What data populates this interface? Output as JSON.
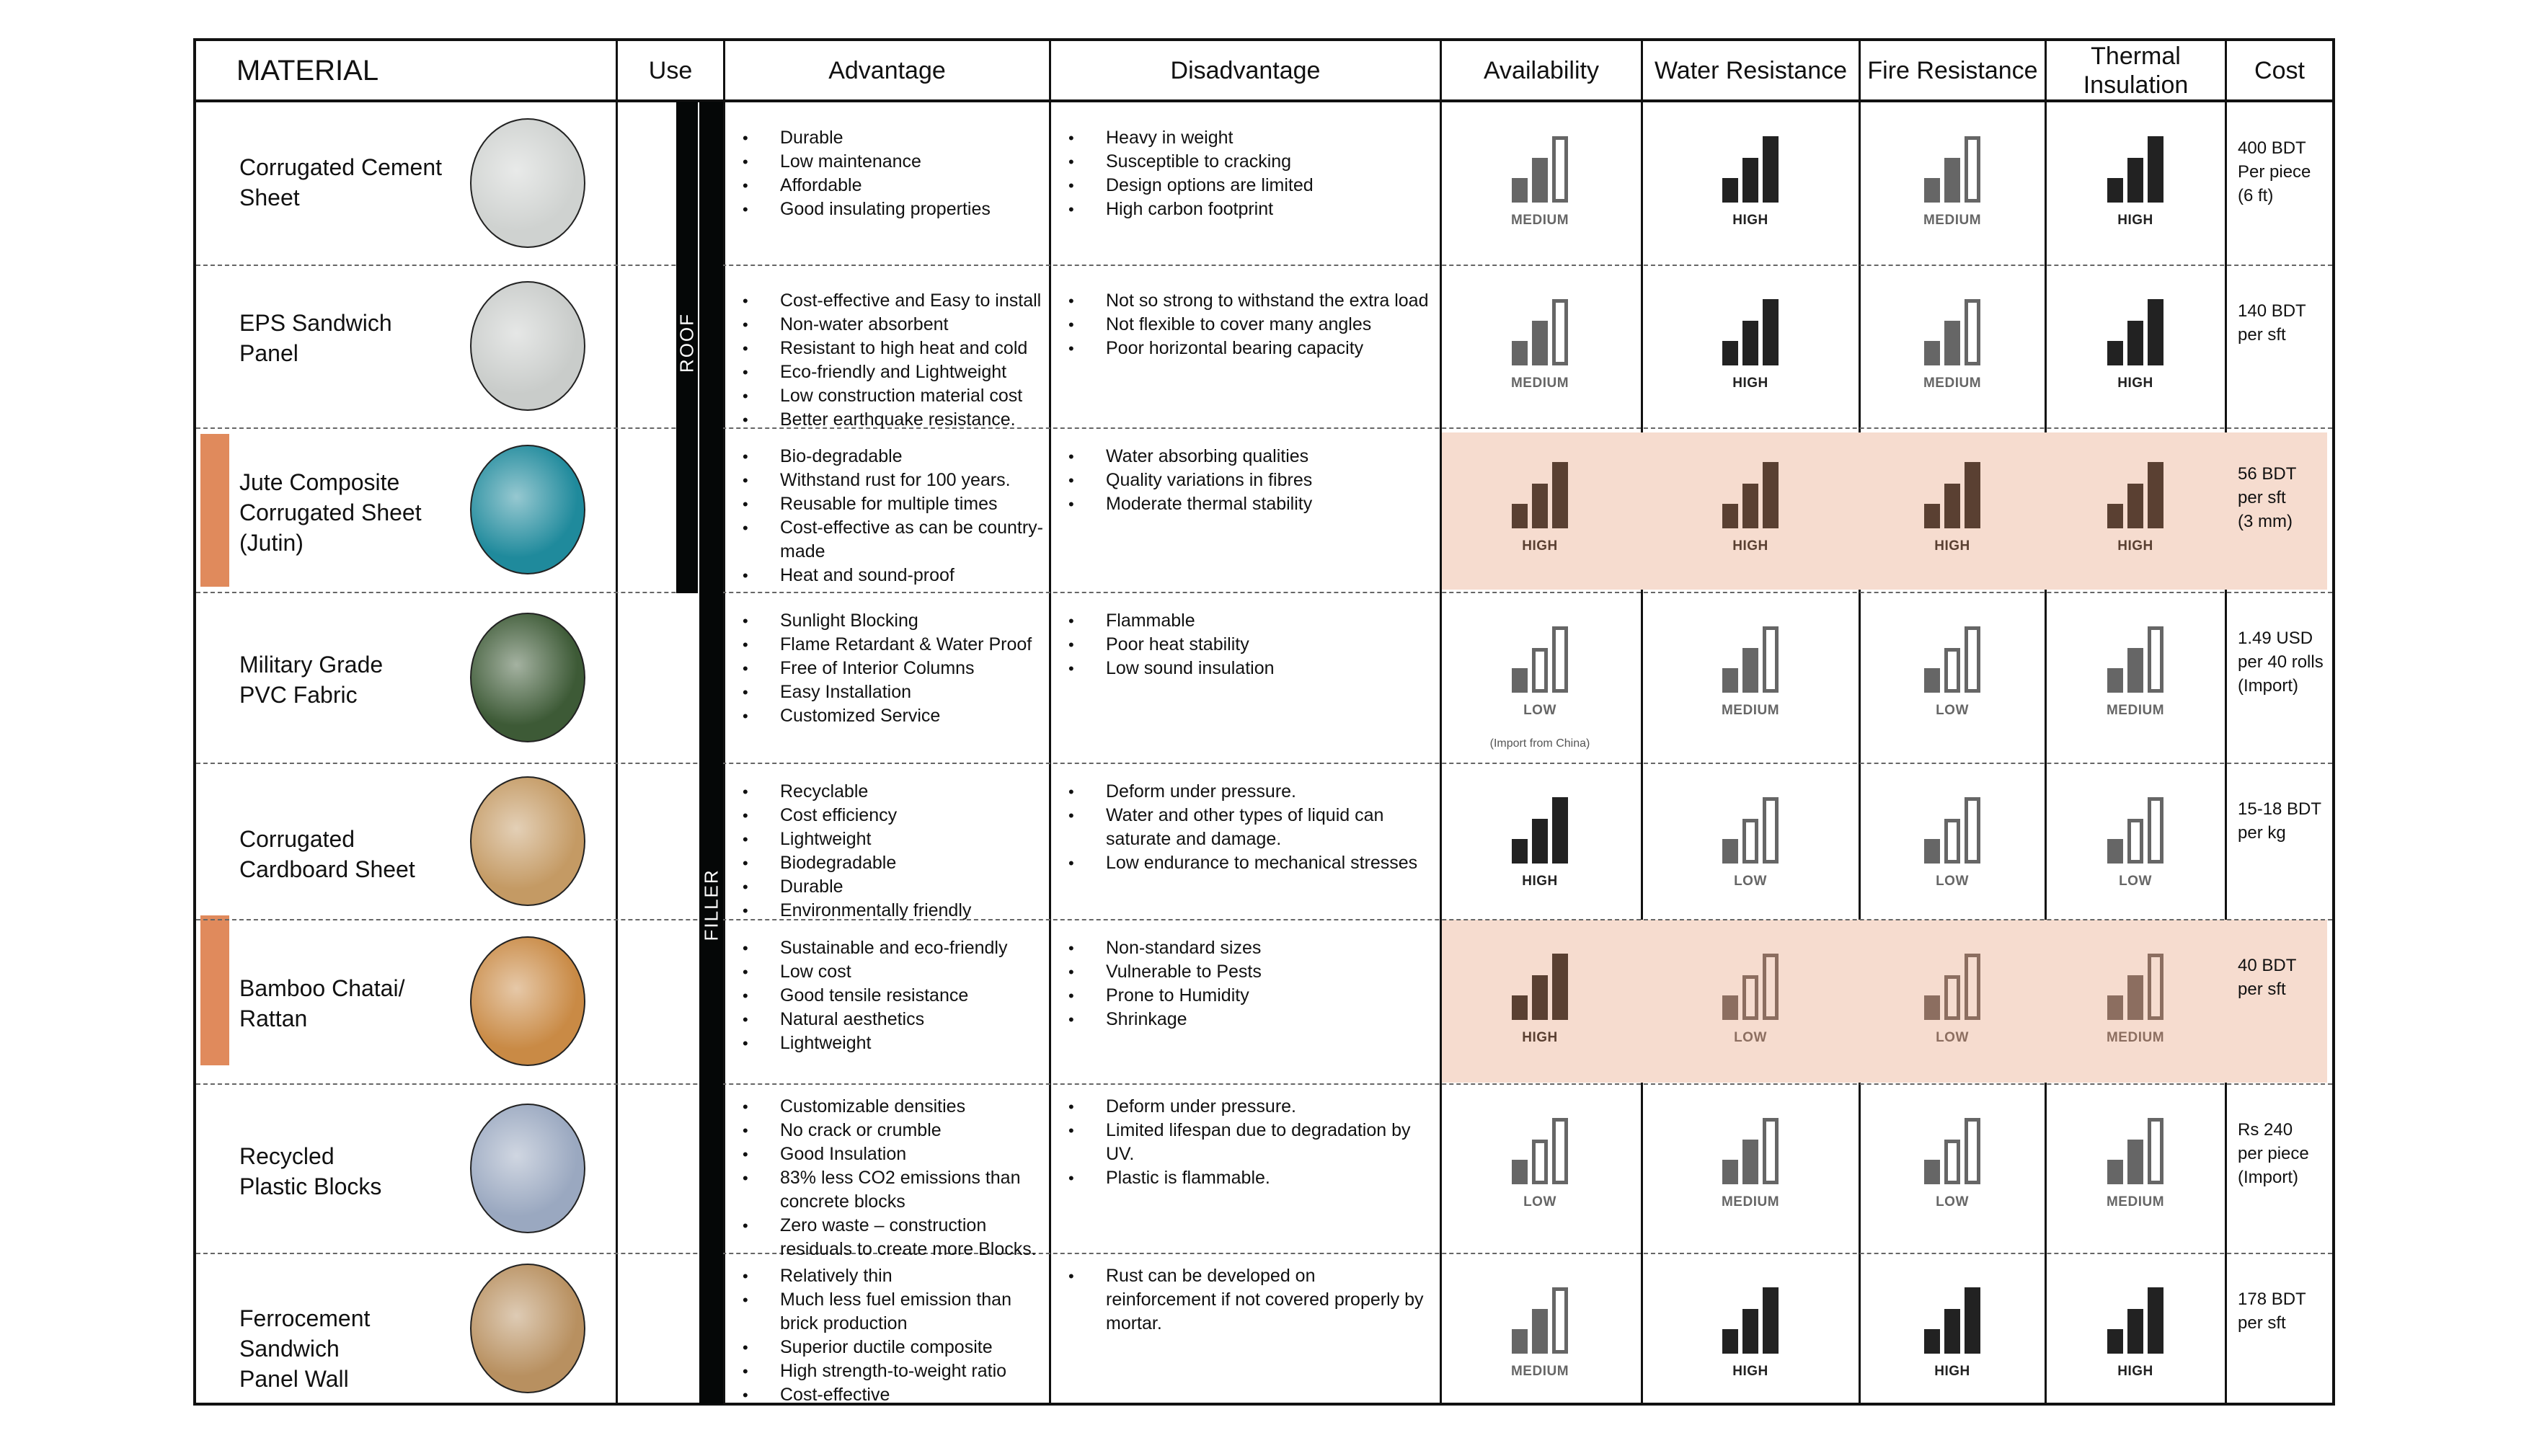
{
  "table": {
    "headers": {
      "material": "MATERIAL",
      "use": "Use",
      "advantage": "Advantage",
      "disadvantage": "Disadvantage",
      "availability": "Availability",
      "water_resistance": "Water Resistance",
      "fire_resistance": "Fire Resistance",
      "thermal_insulation_line1": "Thermal",
      "thermal_insulation_line2": "Insulation",
      "cost": "Cost"
    },
    "use_groups": {
      "roof": "ROOF",
      "filler": "FILLER"
    },
    "colors": {
      "highlight_bg": "#f6dccf",
      "accent_bar": "#e08a5c",
      "rating_dark": "#222222",
      "rating_gray": "#666666",
      "rating_brown_dark": "#5a4032",
      "rating_brown_light": "#8c6e60"
    },
    "rows": [
      {
        "name_lines": [
          "Corrugated Cement",
          "Sheet"
        ],
        "image": "corrugated-cement-sheet-photo",
        "highlighted": false,
        "advantages": [
          "Durable",
          "Low maintenance",
          "Affordable",
          "Good insulating properties"
        ],
        "disadvantages": [
          "Heavy in weight",
          "Susceptible to cracking",
          "Design options are limited",
          "High carbon footprint"
        ],
        "availability": "MEDIUM",
        "water_resistance": "HIGH",
        "fire_resistance": "MEDIUM",
        "thermal_insulation": "HIGH",
        "cost_lines": [
          "400 BDT",
          "Per piece",
          "(6 ft)"
        ]
      },
      {
        "name_lines": [
          "EPS Sandwich",
          "Panel"
        ],
        "image": "eps-sandwich-panel-photo",
        "highlighted": false,
        "advantages": [
          "Cost-effective and Easy to install",
          "Non-water absorbent",
          "Resistant to high heat and cold",
          "Eco-friendly and Lightweight",
          "Low construction material cost",
          "Better earthquake resistance."
        ],
        "disadvantages": [
          "Not so strong to withstand the extra load",
          "Not flexible to cover many angles",
          "Poor horizontal bearing capacity"
        ],
        "availability": "MEDIUM",
        "water_resistance": "HIGH",
        "fire_resistance": "MEDIUM",
        "thermal_insulation": "HIGH",
        "cost_lines": [
          "140 BDT",
          "per sft"
        ]
      },
      {
        "name_lines": [
          "Jute Composite",
          "Corrugated Sheet",
          "(Jutin)"
        ],
        "image": "jute-composite-sheet-photo",
        "highlighted": true,
        "advantages": [
          "Bio-degradable",
          "Withstand rust for 100 years.",
          "Reusable for multiple times",
          "Cost-effective as can be country-made",
          "Heat and sound-proof"
        ],
        "disadvantages": [
          "Water absorbing qualities",
          "Quality variations in fibres",
          "Moderate thermal stability"
        ],
        "availability": "HIGH",
        "water_resistance": "HIGH",
        "fire_resistance": "HIGH",
        "thermal_insulation": "HIGH",
        "cost_lines": [
          "56 BDT",
          "per sft",
          "(3 mm)"
        ]
      },
      {
        "name_lines": [
          "Military Grade",
          "PVC Fabric"
        ],
        "image": "pvc-fabric-tent-photo",
        "highlighted": false,
        "advantages": [
          "Sunlight Blocking",
          "Flame Retardant & Water Proof",
          "Free of Interior Columns",
          "Easy Installation",
          "Customized Service"
        ],
        "disadvantages": [
          "Flammable",
          "Poor heat stability",
          "Low sound insulation"
        ],
        "availability": "LOW",
        "availability_note": "(Import from China)",
        "water_resistance": "MEDIUM",
        "fire_resistance": "LOW",
        "thermal_insulation": "MEDIUM",
        "cost_lines": [
          "1.49 USD",
          "per 40 rolls",
          "(Import)"
        ]
      },
      {
        "name_lines": [
          "Corrugated",
          "Cardboard Sheet"
        ],
        "image": "cardboard-sheet-photo",
        "highlighted": false,
        "advantages": [
          "Recyclable",
          "Cost efficiency",
          "Lightweight",
          "Biodegradable",
          "Durable",
          "Environmentally friendly"
        ],
        "disadvantages": [
          "Deform under pressure.",
          "Water and other types of liquid can saturate and damage.",
          "Low endurance to mechanical stresses"
        ],
        "availability": "HIGH",
        "water_resistance": "LOW",
        "fire_resistance": "LOW",
        "thermal_insulation": "LOW",
        "cost_lines": [
          "15-18 BDT",
          "per kg"
        ]
      },
      {
        "name_lines": [
          "Bamboo Chatai/",
          "Rattan"
        ],
        "image": "bamboo-chatai-photo",
        "highlighted": true,
        "advantages": [
          "Sustainable and eco-friendly",
          "Low cost",
          "Good tensile resistance",
          "Natural aesthetics",
          "Lightweight"
        ],
        "disadvantages": [
          "Non-standard sizes",
          "Vulnerable to Pests",
          "Prone to Humidity",
          "Shrinkage"
        ],
        "availability": "HIGH",
        "water_resistance": "LOW",
        "fire_resistance": "LOW",
        "thermal_insulation": "MEDIUM",
        "cost_lines": [
          "40 BDT",
          "per sft"
        ]
      },
      {
        "name_lines": [
          "Recycled",
          "Plastic Blocks"
        ],
        "image": "recycled-plastic-blocks-photo",
        "highlighted": false,
        "advantages": [
          "Customizable densities",
          "No crack or crumble",
          "Good Insulation",
          "83% less CO2 emissions than concrete blocks",
          "Zero waste – construction residuals to create more Blocks."
        ],
        "disadvantages": [
          "Deform under pressure.",
          "Limited lifespan due to degradation by UV.",
          "Plastic is flammable."
        ],
        "availability": "LOW",
        "water_resistance": "MEDIUM",
        "fire_resistance": "LOW",
        "thermal_insulation": "MEDIUM",
        "cost_lines": [
          "Rs 240",
          "per piece",
          "(Import)"
        ]
      },
      {
        "name_lines": [
          "Ferrocement",
          "Sandwich",
          "Panel Wall"
        ],
        "image": "ferrocement-panel-photo",
        "highlighted": false,
        "advantages": [
          "Relatively thin",
          "Much less fuel emission than brick production",
          "Superior ductile composite",
          "High strength-to-weight ratio",
          "Cost-effective"
        ],
        "disadvantages": [
          "Rust can be developed on reinforcement if not covered properly by mortar."
        ],
        "availability": "MEDIUM",
        "water_resistance": "HIGH",
        "fire_resistance": "HIGH",
        "thermal_insulation": "HIGH",
        "cost_lines": [
          "178 BDT",
          "per sft"
        ]
      }
    ]
  }
}
